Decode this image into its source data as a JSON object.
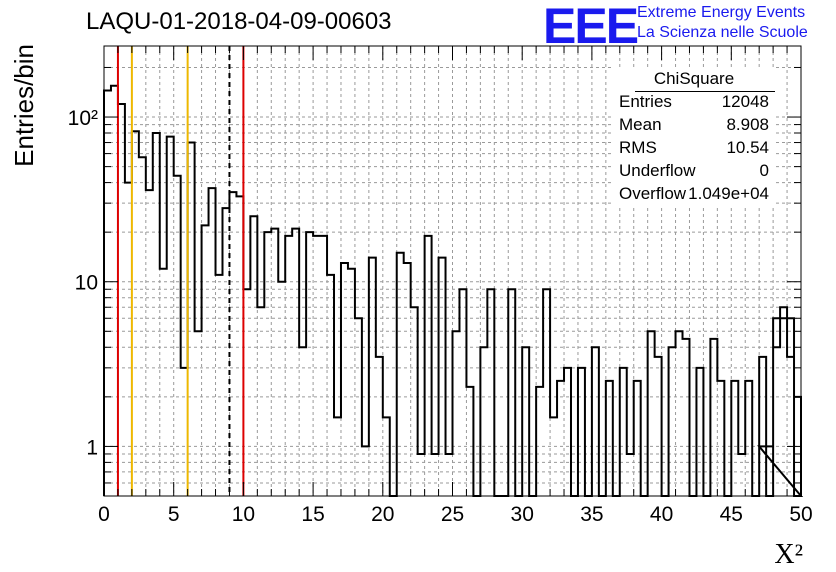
{
  "title": "LAQU-01-2018-04-09-00603",
  "logo": {
    "text": "EEE",
    "line1": "Extreme Energy Events",
    "line2": "La Scienza nelle Scuole",
    "color": "#1a1aee"
  },
  "stats": {
    "title": "ChiSquare",
    "rows": [
      {
        "name": "Entries",
        "value": "12048"
      },
      {
        "name": "Mean",
        "value": "8.908"
      },
      {
        "name": "RMS",
        "value": "10.54"
      },
      {
        "name": "Underflow",
        "value": "0"
      },
      {
        "name": "Overflow",
        "value": "1.049e+04"
      }
    ]
  },
  "chart_data": {
    "type": "histogram",
    "title": "LAQU-01-2018-04-09-00603",
    "xlabel": "X²",
    "ylabel": "Entries/bin",
    "xlim": [
      0,
      50
    ],
    "ylim": [
      0.5,
      270
    ],
    "log_y": true,
    "grid": true,
    "bin_width": 0.5,
    "x_ticks": [
      0,
      5,
      10,
      15,
      20,
      25,
      30,
      35,
      40,
      45,
      50
    ],
    "y_ticks": [
      {
        "value": 1,
        "label": "1"
      },
      {
        "value": 10,
        "label": "10"
      },
      {
        "value": 100,
        "label": "10²"
      }
    ],
    "values": [
      145,
      155,
      120,
      40,
      82,
      57,
      36,
      80,
      12,
      76,
      44,
      3,
      70,
      5,
      22,
      37,
      11,
      28,
      35,
      33,
      9,
      25,
      7,
      20,
      21,
      10,
      19,
      21,
      4,
      20,
      19,
      19,
      11,
      1.5,
      13,
      12,
      6,
      1,
      14,
      3.5,
      1.5,
      0.5,
      15,
      13,
      7,
      0.9,
      19,
      0.9,
      14,
      0.9,
      5,
      9,
      2.3,
      0.5,
      4,
      9,
      0.5,
      0.5,
      9,
      0.5,
      4,
      0.5,
      2.3,
      9,
      1.5,
      2.5,
      3,
      0.5,
      3,
      0.5,
      4,
      0.5,
      2.5,
      0.5,
      3,
      0.9,
      2.5,
      0.5,
      5,
      3.5,
      0.5,
      4,
      5,
      4.5,
      0.5,
      3,
      0.5,
      4.5,
      2.5,
      0.5,
      2.5,
      0.9,
      2.5,
      0.5,
      3.5,
      0.5,
      4,
      7,
      3.5,
      0.5
    ],
    "extra_bins": [
      {
        "x0": 47,
        "x1": 48,
        "value": 1
      },
      {
        "x0": 48,
        "x1": 49.5,
        "value": 6
      },
      {
        "x0": 49.5,
        "x1": 50,
        "value": 2
      }
    ],
    "vertical_lines": [
      {
        "x": 1,
        "color": "#dd0000",
        "style": "solid"
      },
      {
        "x": 2,
        "color": "#eeb800",
        "style": "solid"
      },
      {
        "x": 6,
        "color": "#eeb800",
        "style": "solid"
      },
      {
        "x": 9,
        "color": "#000000",
        "style": "dashed"
      },
      {
        "x": 10,
        "color": "#dd0000",
        "style": "solid"
      }
    ]
  }
}
